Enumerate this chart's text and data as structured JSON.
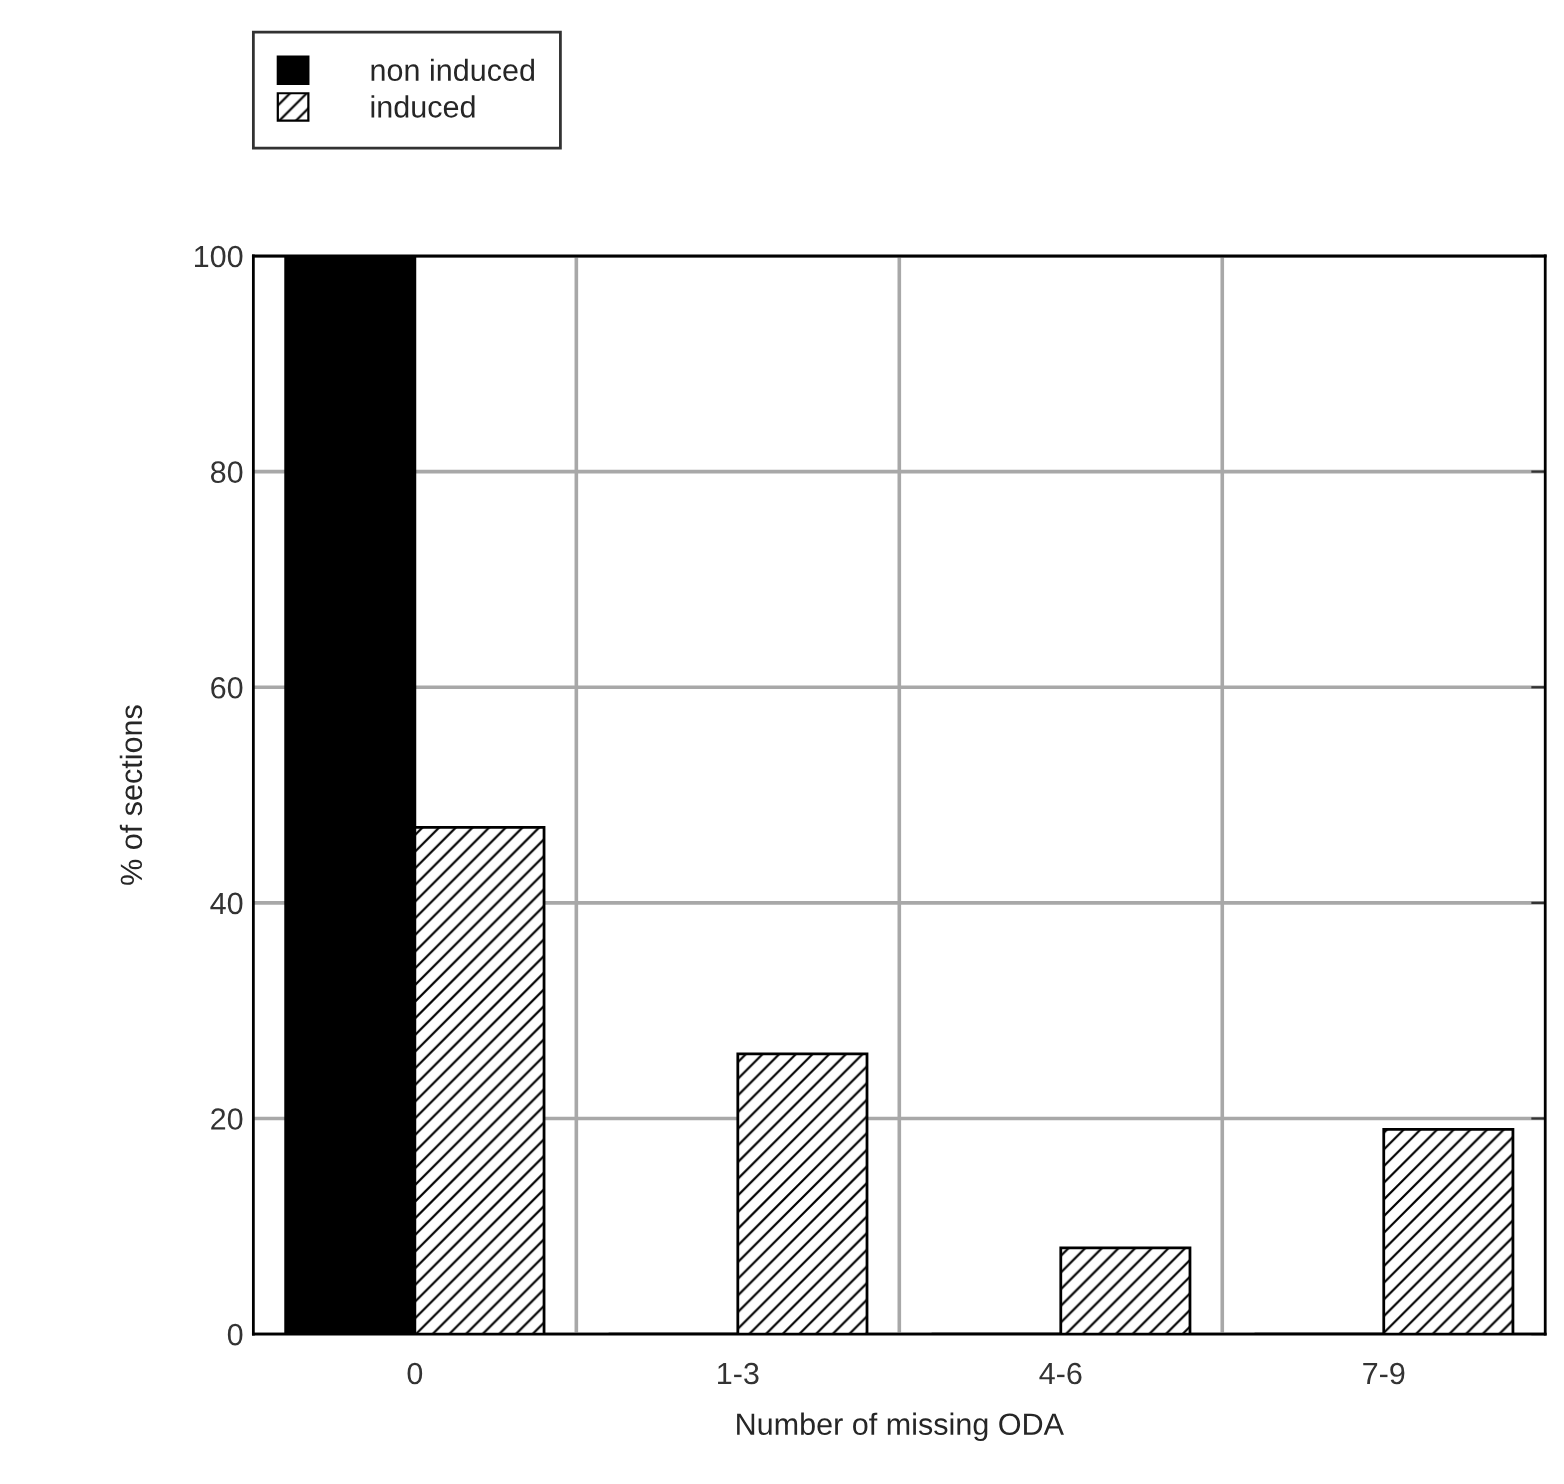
{
  "chart_data": {
    "type": "bar",
    "xlabel": "Number of missing ODA",
    "ylabel": "% of sections",
    "categories": [
      "0",
      "1-3",
      "4-6",
      "7-9"
    ],
    "series": [
      {
        "name": "non induced",
        "color": "#000000",
        "values": [
          100,
          0,
          0,
          0
        ]
      },
      {
        "name": "induced",
        "color": "#ffffff",
        "values": [
          47,
          26,
          8,
          19
        ]
      }
    ],
    "ylim": [
      0,
      100
    ],
    "yticks": [
      0,
      20,
      40,
      60,
      80,
      100
    ],
    "grid": true,
    "legend": "top left"
  }
}
